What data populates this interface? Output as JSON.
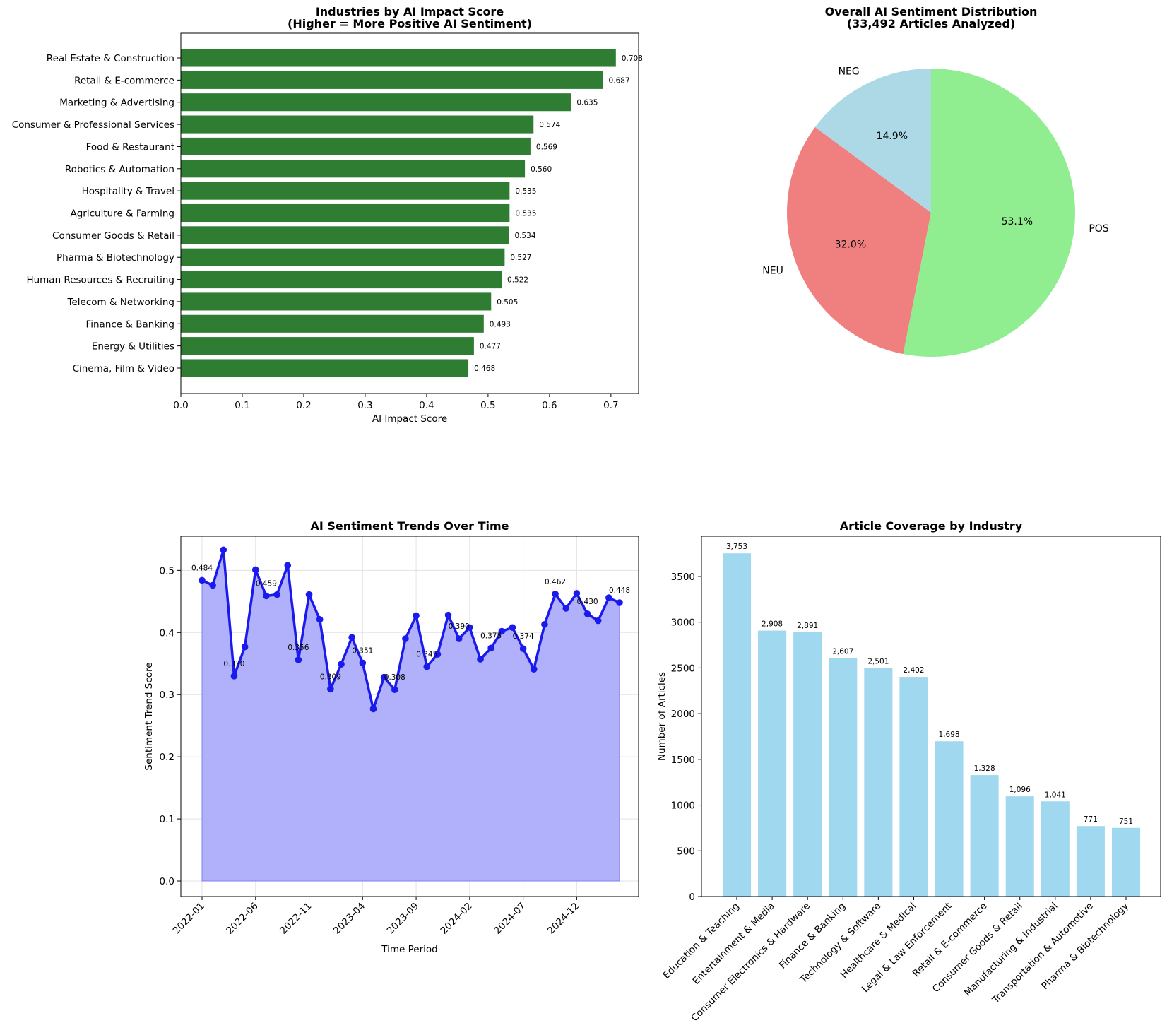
{
  "chart_data": [
    {
      "type": "bar",
      "orientation": "horizontal",
      "title": "Industries by AI Impact Score",
      "subtitle": "(Higher = More Positive AI Sentiment)",
      "xlabel": "AI Impact Score",
      "ylabel": "",
      "xlim": [
        0,
        0.745
      ],
      "xticks": [
        "0.0",
        "0.1",
        "0.2",
        "0.3",
        "0.4",
        "0.5",
        "0.6",
        "0.7"
      ],
      "grid": false,
      "color": "#2e7d32",
      "categories": [
        "Real Estate & Construction",
        "Retail & E-commerce",
        "Marketing & Advertising",
        "Consumer & Professional Services",
        "Food & Restaurant",
        "Robotics & Automation",
        "Hospitality & Travel",
        "Agriculture & Farming",
        "Consumer Goods & Retail",
        "Pharma & Biotechnology",
        "Human Resources & Recruiting",
        "Telecom & Networking",
        "Finance & Banking",
        "Energy & Utilities",
        "Cinema, Film & Video"
      ],
      "values": [
        0.708,
        0.687,
        0.635,
        0.574,
        0.569,
        0.56,
        0.535,
        0.535,
        0.534,
        0.527,
        0.522,
        0.505,
        0.493,
        0.477,
        0.468
      ],
      "data_labels": [
        "0.708",
        "0.687",
        "0.635",
        "0.574",
        "0.569",
        "0.560",
        "0.535",
        "0.535",
        "0.534",
        "0.527",
        "0.522",
        "0.505",
        "0.493",
        "0.477",
        "0.468"
      ]
    },
    {
      "type": "pie",
      "title": "Overall AI Sentiment Distribution",
      "subtitle": "(33,492 Articles Analyzed)",
      "labels": [
        "NEG",
        "NEU",
        "POS"
      ],
      "values": [
        14.9,
        32.0,
        53.1
      ],
      "pct_labels": [
        "14.9%",
        "32.0%",
        "53.1%"
      ],
      "colors": [
        "#add8e6",
        "#f08080",
        "#90ee90"
      ]
    },
    {
      "type": "area",
      "title": "AI Sentiment Trends Over Time",
      "xlabel": "Time Period",
      "ylabel": "Sentiment Trend Score",
      "ylim": [
        -0.025,
        0.555
      ],
      "yticks": [
        "0.0",
        "0.1",
        "0.2",
        "0.3",
        "0.4",
        "0.5"
      ],
      "xtick_labels": [
        "2022-01",
        "2022-06",
        "2022-11",
        "2023-04",
        "2023-09",
        "2024-02",
        "2024-07",
        "2024-12"
      ],
      "grid": true,
      "line_color": "#1a1aee",
      "fill_color": "#b0b0fb",
      "x": [
        "2022-01",
        "2022-02",
        "2022-03",
        "2022-04",
        "2022-05",
        "2022-06",
        "2022-07",
        "2022-08",
        "2022-09",
        "2022-10",
        "2022-11",
        "2022-12",
        "2023-01",
        "2023-02",
        "2023-03",
        "2023-04",
        "2023-05",
        "2023-06",
        "2023-07",
        "2023-08",
        "2023-09",
        "2023-10",
        "2023-11",
        "2023-12",
        "2024-01",
        "2024-02",
        "2024-03",
        "2024-04",
        "2024-05",
        "2024-06",
        "2024-07",
        "2024-08",
        "2024-09",
        "2024-10",
        "2024-11",
        "2024-12",
        "2025-01",
        "2025-02",
        "2025-03",
        "2025-04"
      ],
      "values": [
        0.484,
        0.476,
        0.533,
        0.33,
        0.377,
        0.501,
        0.459,
        0.461,
        0.508,
        0.356,
        0.461,
        0.421,
        0.309,
        0.349,
        0.392,
        0.351,
        0.277,
        0.328,
        0.308,
        0.39,
        0.427,
        0.345,
        0.365,
        0.428,
        0.39,
        0.408,
        0.357,
        0.375,
        0.402,
        0.408,
        0.374,
        0.341,
        0.413,
        0.462,
        0.439,
        0.463,
        0.43,
        0.419,
        0.456,
        0.448
      ],
      "point_labels": [
        {
          "x": "2022-01",
          "text": "0.484"
        },
        {
          "x": "2022-04",
          "text": "0.330"
        },
        {
          "x": "2022-07",
          "text": "0.459"
        },
        {
          "x": "2022-10",
          "text": "0.356"
        },
        {
          "x": "2023-01",
          "text": "0.309"
        },
        {
          "x": "2023-04",
          "text": "0.351"
        },
        {
          "x": "2023-07",
          "text": "0.308"
        },
        {
          "x": "2023-10",
          "text": "0.345"
        },
        {
          "x": "2024-01",
          "text": "0.390"
        },
        {
          "x": "2024-04",
          "text": "0.375"
        },
        {
          "x": "2024-07",
          "text": "0.374"
        },
        {
          "x": "2024-10",
          "text": "0.462"
        },
        {
          "x": "2025-01",
          "text": "0.430"
        },
        {
          "x": "2025-04",
          "text": "0.448"
        }
      ]
    },
    {
      "type": "bar",
      "orientation": "vertical",
      "title": "Article Coverage by Industry",
      "xlabel": "",
      "ylabel": "Number of Articles",
      "ylim": [
        0,
        3940
      ],
      "yticks": [
        "0",
        "500",
        "1000",
        "1500",
        "2000",
        "2500",
        "3000",
        "3500"
      ],
      "grid": false,
      "color": "#a0d8ef",
      "categories": [
        "Education & Teaching",
        "Entertainment & Media",
        "Consumer Electronics & Hardware",
        "Finance & Banking",
        "Technology & Software",
        "Healthcare & Medical",
        "Legal & Law Enforcement",
        "Retail & E-commerce",
        "Consumer Goods & Retail",
        "Manufacturing & Industrial",
        "Transportation & Automotive",
        "Pharma & Biotechnology"
      ],
      "values": [
        3753,
        2908,
        2891,
        2607,
        2501,
        2402,
        1698,
        1328,
        1096,
        1041,
        771,
        751
      ],
      "data_labels": [
        "3,753",
        "2,908",
        "2,891",
        "2,607",
        "2,501",
        "2,402",
        "1,698",
        "1,328",
        "1,096",
        "1,041",
        "771",
        "751"
      ]
    }
  ]
}
